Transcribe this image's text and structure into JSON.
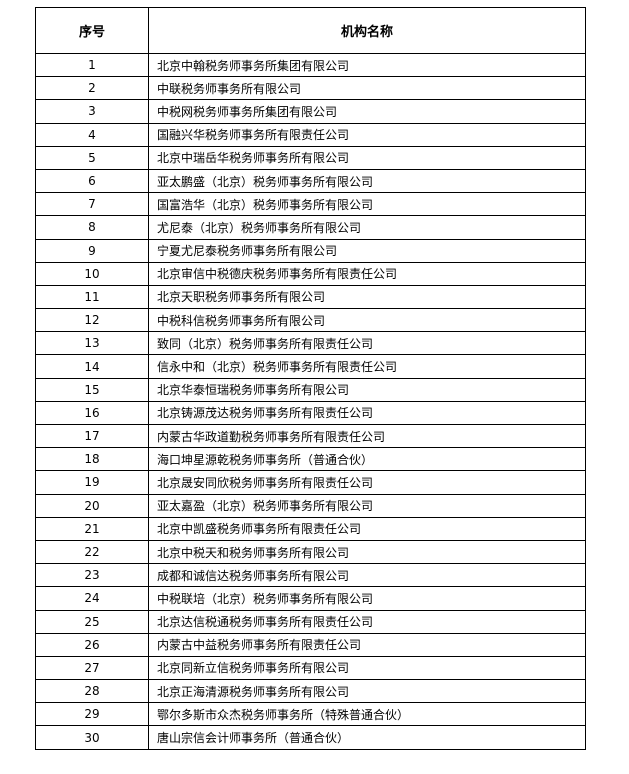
{
  "table": {
    "headers": [
      "序号",
      "机构名称"
    ],
    "rows": [
      [
        "1",
        "北京中翰税务师事务所集团有限公司"
      ],
      [
        "2",
        "中联税务师事务所有限公司"
      ],
      [
        "3",
        "中税网税务师事务所集团有限公司"
      ],
      [
        "4",
        "国融兴华税务师事务所有限责任公司"
      ],
      [
        "5",
        "北京中瑞岳华税务师事务所有限公司"
      ],
      [
        "6",
        "亚太鹏盛（北京）税务师事务所有限公司"
      ],
      [
        "7",
        "国富浩华（北京）税务师事务所有限公司"
      ],
      [
        "8",
        "尤尼泰（北京）税务师事务所有限公司"
      ],
      [
        "9",
        "宁夏尤尼泰税务师事务所有限公司"
      ],
      [
        "10",
        "北京审信中税德庆税务师事务所有限责任公司"
      ],
      [
        "11",
        "北京天职税务师事务所有限公司"
      ],
      [
        "12",
        "中税科信税务师事务所有限公司"
      ],
      [
        "13",
        "致同（北京）税务师事务所有限责任公司"
      ],
      [
        "14",
        "信永中和（北京）税务师事务所有限责任公司"
      ],
      [
        "15",
        "北京华泰恒瑞税务师事务所有限公司"
      ],
      [
        "16",
        "北京铸源茂达税务师事务所有限责任公司"
      ],
      [
        "17",
        "内蒙古华政道勤税务师事务所有限责任公司"
      ],
      [
        "18",
        "海口坤星源乾税务师事务所（普通合伙）"
      ],
      [
        "19",
        "北京晟安同欣税务师事务所有限责任公司"
      ],
      [
        "20",
        "亚太嘉盈（北京）税务师事务所有限公司"
      ],
      [
        "21",
        "北京中凯盛税务师事务所有限责任公司"
      ],
      [
        "22",
        "北京中税天和税务师事务所有限公司"
      ],
      [
        "23",
        "成都和诚信达税务师事务所有限公司"
      ],
      [
        "24",
        "中税联培（北京）税务师事务所有限公司"
      ],
      [
        "25",
        "北京达信税通税务师事务所有限责任公司"
      ],
      [
        "26",
        "内蒙古中益税务师事务所有限责任公司"
      ],
      [
        "27",
        "北京同新立信税务师事务所有限公司"
      ],
      [
        "28",
        "北京正海清源税务师事务所有限公司"
      ],
      [
        "29",
        "鄂尔多斯市众杰税务师事务所（特殊普通合伙）"
      ],
      [
        "30",
        "唐山宗信会计师事务所（普通合伙）"
      ]
    ]
  }
}
